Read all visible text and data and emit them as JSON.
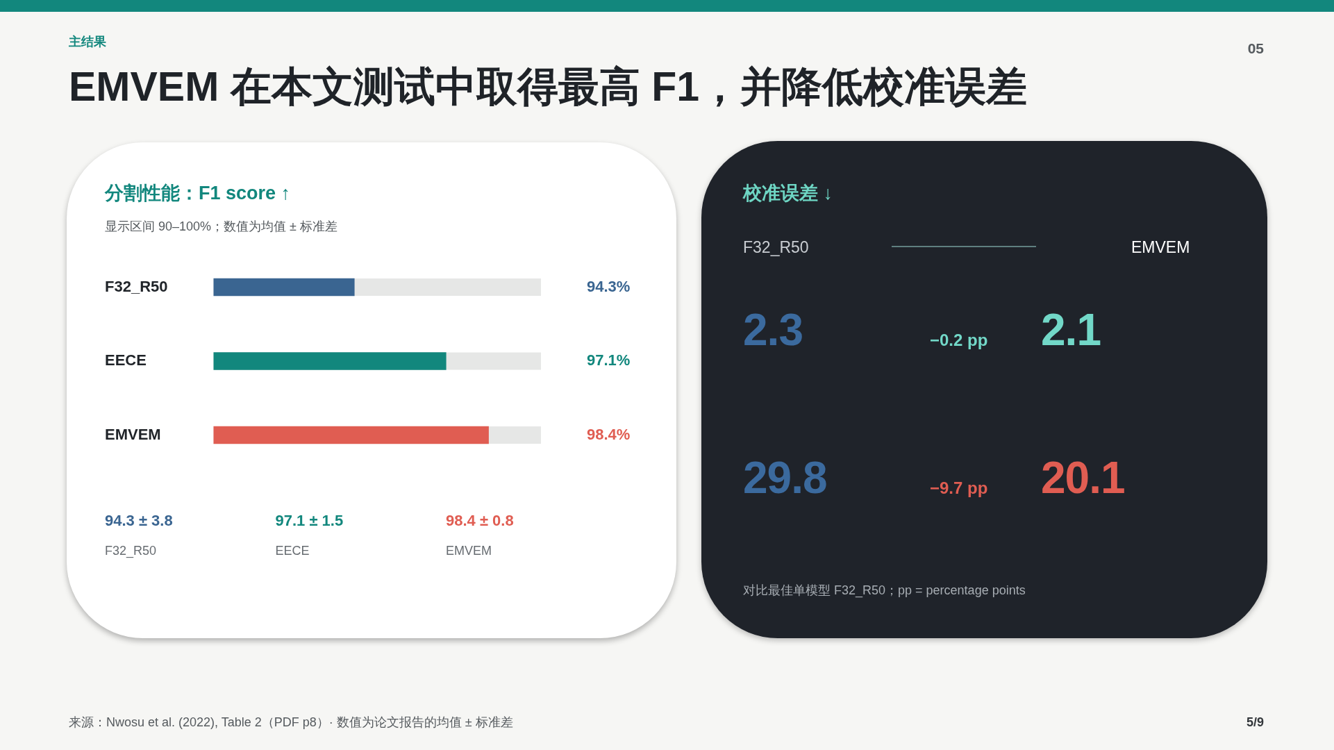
{
  "chart_data": [
    {
      "type": "other",
      "title": "EMVEM 在本文测试中取得最高 F1，并降低校准误差",
      "subtitle": "主结果",
      "annotations": [
        "05",
        "来源：Nwosu et al. (2022), Table 2（PDF p8）· 数值为论文报告的均值 ± 标准差",
        "5/9"
      ]
    },
    {
      "type": "bar",
      "orientation": "horizontal",
      "title": "分割性能：F1 score ↑",
      "subtitle": "显示区间 90–100%；数值为均值 ± 标准差",
      "categories": [
        "F32_R50",
        "EECE",
        "EMVEM"
      ],
      "values": [
        94.3,
        97.1,
        98.4
      ],
      "colors": [
        "#3a6591",
        "#12877d",
        "#e05d52"
      ],
      "xlim": [
        90,
        100
      ],
      "tick_labels": "y",
      "value_labels": [
        "94.3%",
        "97.1%",
        "98.4%"
      ],
      "annotations": [
        "94.3 ± 3.8",
        "97.1 ± 1.5",
        "98.4 ± 0.8"
      ]
    },
    {
      "type": "other",
      "title": "校准误差 ↓",
      "annotations": [
        "F32_R50",
        "EMVEM",
        "2.3",
        "−0.2 pp",
        "2.1",
        "29.8",
        "−9.7 pp",
        "20.1",
        "对比最佳单模型 F32_R50；pp = percentage points"
      ]
    }
  ]
}
